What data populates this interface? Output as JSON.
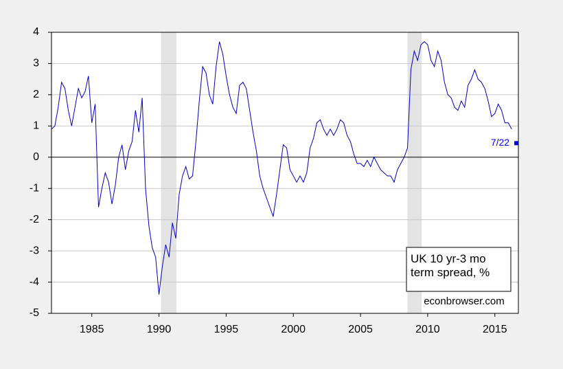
{
  "chart_data": {
    "type": "line",
    "xlim": [
      1982,
      2016.75
    ],
    "xticks": [
      1985,
      1990,
      1995,
      2000,
      2005,
      2010,
      2015
    ],
    "ylim": [
      -5,
      4
    ],
    "yticks": [
      4,
      3,
      2,
      1,
      0,
      -1,
      -2,
      -3,
      -4,
      -5
    ],
    "grid": true,
    "shaded_ranges": [
      [
        1990.15,
        1991.3
      ],
      [
        2008.5,
        2009.55
      ]
    ],
    "series": [
      {
        "name": "UK 10 yr-3 mo term spread, %",
        "color": "#0000c0",
        "x": [
          1982,
          1982.25,
          1982.5,
          1982.75,
          1983,
          1983.25,
          1983.5,
          1983.75,
          1984,
          1984.25,
          1984.5,
          1984.75,
          1985,
          1985.25,
          1985.5,
          1985.75,
          1986,
          1986.25,
          1986.5,
          1986.75,
          1987,
          1987.25,
          1987.5,
          1987.75,
          1988,
          1988.25,
          1988.5,
          1988.75,
          1989,
          1989.25,
          1989.5,
          1989.75,
          1990,
          1990.25,
          1990.5,
          1990.75,
          1991,
          1991.25,
          1991.5,
          1991.75,
          1992,
          1992.25,
          1992.5,
          1992.75,
          1993,
          1993.25,
          1993.5,
          1993.75,
          1994,
          1994.25,
          1994.5,
          1994.75,
          1995,
          1995.25,
          1995.5,
          1995.75,
          1996,
          1996.25,
          1996.5,
          1996.75,
          1997,
          1997.25,
          1997.5,
          1997.75,
          1998,
          1998.25,
          1998.5,
          1998.75,
          1999,
          1999.25,
          1999.5,
          1999.75,
          2000,
          2000.25,
          2000.5,
          2000.75,
          2001,
          2001.25,
          2001.5,
          2001.75,
          2002,
          2002.25,
          2002.5,
          2002.75,
          2003,
          2003.25,
          2003.5,
          2003.75,
          2004,
          2004.25,
          2004.5,
          2004.75,
          2005,
          2005.25,
          2005.5,
          2005.75,
          2006,
          2006.25,
          2006.5,
          2006.75,
          2007,
          2007.25,
          2007.5,
          2007.75,
          2008,
          2008.25,
          2008.5,
          2008.75,
          2009,
          2009.25,
          2009.5,
          2009.75,
          2010,
          2010.25,
          2010.5,
          2010.75,
          2011,
          2011.25,
          2011.5,
          2011.75,
          2012,
          2012.25,
          2012.5,
          2012.75,
          2013,
          2013.25,
          2013.5,
          2013.75,
          2014,
          2014.25,
          2014.5,
          2014.75,
          2015,
          2015.25,
          2015.5,
          2015.75,
          2016,
          2016.25
        ],
        "values": [
          0.9,
          1.0,
          1.6,
          2.4,
          2.2,
          1.5,
          1.0,
          1.6,
          2.2,
          1.9,
          2.1,
          2.6,
          1.1,
          1.7,
          -1.6,
          -1.0,
          -0.5,
          -0.8,
          -1.5,
          -0.9,
          0.0,
          0.4,
          -0.4,
          0.2,
          0.5,
          1.5,
          0.8,
          1.9,
          -1.0,
          -2.2,
          -2.9,
          -3.2,
          -4.4,
          -3.5,
          -2.8,
          -3.2,
          -2.1,
          -2.6,
          -1.2,
          -0.6,
          -0.3,
          -0.7,
          -0.6,
          0.5,
          1.8,
          2.9,
          2.7,
          2.0,
          1.7,
          2.9,
          3.7,
          3.3,
          2.6,
          2.0,
          1.6,
          1.4,
          2.3,
          2.4,
          2.2,
          1.5,
          0.8,
          0.2,
          -0.6,
          -1.0,
          -1.3,
          -1.6,
          -1.9,
          -1.2,
          -0.4,
          0.4,
          0.3,
          -0.4,
          -0.6,
          -0.8,
          -0.6,
          -0.8,
          -0.5,
          0.3,
          0.6,
          1.1,
          1.2,
          0.9,
          0.7,
          0.9,
          0.7,
          0.9,
          1.2,
          1.1,
          0.7,
          0.5,
          0.1,
          -0.2,
          -0.2,
          -0.3,
          -0.1,
          -0.3,
          0.0,
          -0.2,
          -0.4,
          -0.5,
          -0.6,
          -0.6,
          -0.8,
          -0.4,
          -0.2,
          0.0,
          0.3,
          2.8,
          3.4,
          3.1,
          3.6,
          3.7,
          3.6,
          3.1,
          2.9,
          3.4,
          3.1,
          2.4,
          2.0,
          1.9,
          1.6,
          1.5,
          1.8,
          1.6,
          2.3,
          2.5,
          2.8,
          2.5,
          2.4,
          2.2,
          1.8,
          1.3,
          1.4,
          1.7,
          1.5,
          1.1,
          1.1,
          0.9
        ]
      }
    ],
    "annotations": [
      {
        "text": "7/22",
        "x": 2016.6,
        "y": 0.45
      }
    ],
    "source": "econbrowser.com"
  }
}
